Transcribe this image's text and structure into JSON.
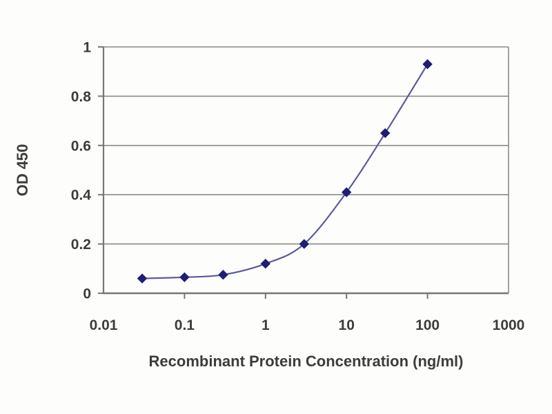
{
  "chart_data": {
    "type": "line",
    "title": "",
    "xlabel": "Recombinant Protein Concentration (ng/ml)",
    "ylabel": "OD 450",
    "x_scale": "log",
    "xlim": [
      0.01,
      1000
    ],
    "ylim": [
      0,
      1
    ],
    "x_ticks": [
      0.1,
      1,
      10,
      100
    ],
    "x_tick_labels_all": [
      "0.01",
      "0.1",
      "1",
      "10",
      "100",
      "1000"
    ],
    "x_tick_positions_all": [
      0.01,
      0.1,
      1,
      10,
      100,
      1000
    ],
    "y_ticks": [
      0,
      0.2,
      0.4,
      0.6,
      0.8,
      1
    ],
    "y_tick_labels": [
      "0",
      "0.2",
      "0.4",
      "0.6",
      "0.8",
      "1"
    ],
    "grid": "horizontal",
    "legend": "none",
    "series": [
      {
        "name": "OD 450",
        "marker": "diamond",
        "marker_color": "#1f1f6e",
        "line_color": "#5b5b93",
        "x": [
          0.03,
          0.1,
          0.3,
          1,
          3,
          10,
          30,
          100
        ],
        "y": [
          0.06,
          0.065,
          0.075,
          0.12,
          0.2,
          0.41,
          0.65,
          0.93
        ]
      }
    ],
    "colors": {
      "gridline": "#8a8a8a",
      "axis": "#767676",
      "tick_text": "#3c3c3c",
      "plot_background": "#fdfdfc"
    }
  }
}
